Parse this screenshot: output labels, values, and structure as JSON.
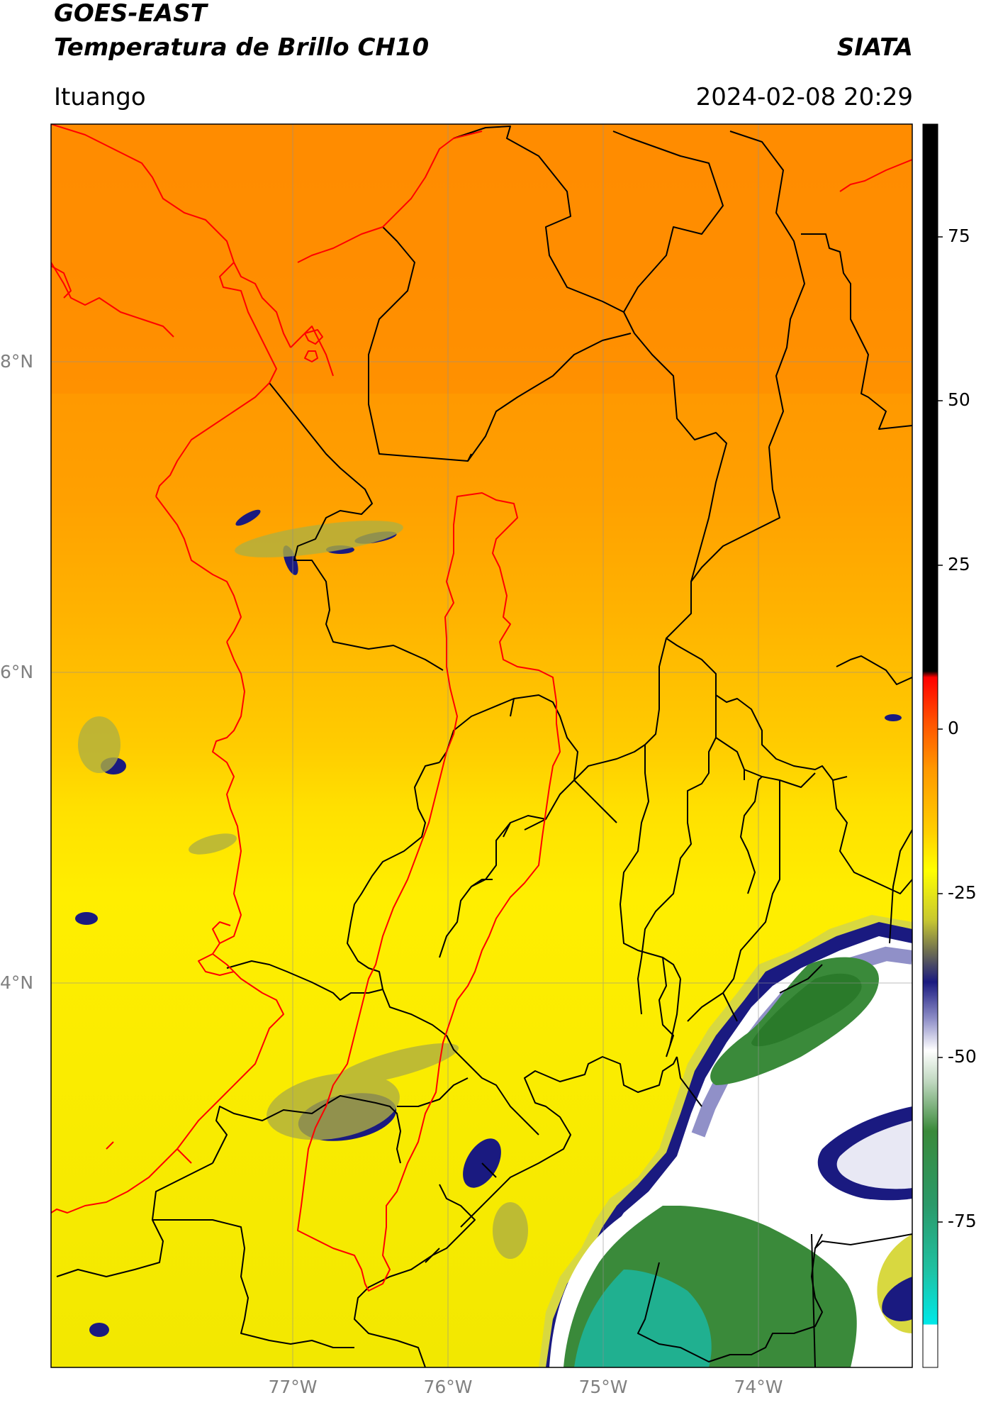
{
  "header": {
    "satellite": "GOES-EAST",
    "product": "Temperatura de Brillo CH10",
    "agency": "SIATA",
    "location": "Ituango",
    "datetime": "2024-02-08 20:29"
  },
  "map": {
    "longitude_labels": [
      "77°W",
      "76°W",
      "75°W",
      "74°W"
    ],
    "latitude_labels": [
      "8°N",
      "6°N",
      "4°N"
    ],
    "lon_range": [
      -78.55,
      -73.0
    ],
    "lat_range": [
      1.9,
      9.45
    ],
    "gridlines": true
  },
  "colorbar": {
    "ticks": [
      "75",
      "50",
      "25",
      "0",
      "-25",
      "-50",
      "-75"
    ],
    "tick_values": [
      75,
      50,
      25,
      0,
      -25,
      -50,
      -75
    ],
    "range": [
      -90,
      90
    ],
    "colors": {
      "warm_black": "#000000",
      "red": "#ff0000",
      "orange": "#ff8c00",
      "yellow": "#ffff00",
      "olive": "#8a8a5a",
      "navy": "#1a1a80",
      "lavender": "#c8c8e8",
      "white": "#ffffff",
      "green": "#3a8a3a",
      "teal": "#20c0a0",
      "cyan": "#00e8e8"
    }
  },
  "legend_colors": {
    "coastline": "#ff0000",
    "admin_boundaries": "#000000"
  }
}
